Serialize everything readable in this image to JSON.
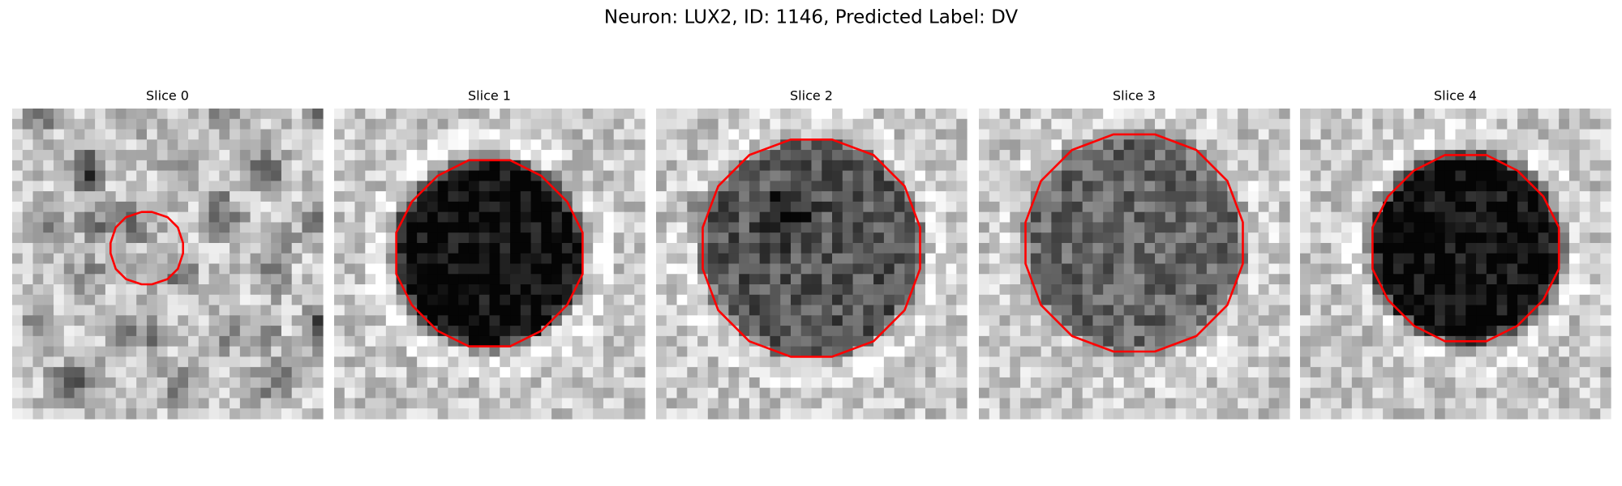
{
  "title": "Neuron: LUX2, ID: 1146, Predicted Label: DV",
  "panels": [
    {
      "title": "Slice 0"
    },
    {
      "title": "Slice 1"
    },
    {
      "title": "Slice 2"
    },
    {
      "title": "Slice 3"
    },
    {
      "title": "Slice 4"
    }
  ]
}
